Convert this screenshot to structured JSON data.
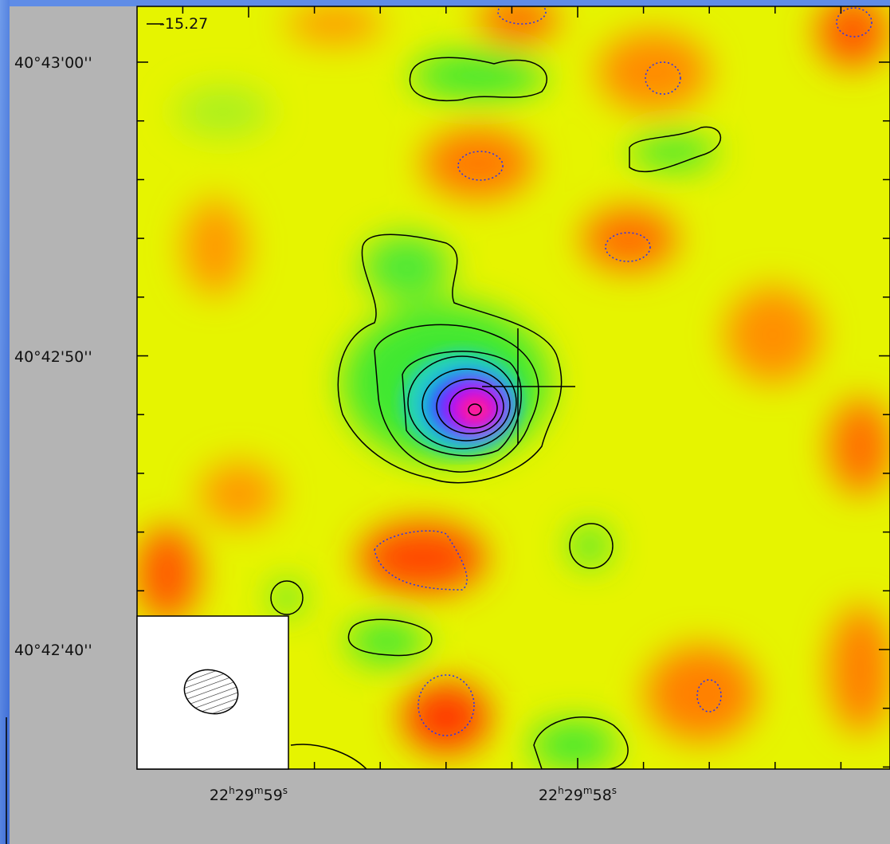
{
  "map": {
    "level_label": "-15.27",
    "dec_labels": [
      "40°43'00''",
      "40°42'50''",
      "40°42'40''"
    ],
    "ra_labels": [
      {
        "hours": "22",
        "h": "h",
        "minutes": "29",
        "m": "m",
        "seconds": "59",
        "s": "s"
      },
      {
        "hours": "22",
        "h": "h",
        "minutes": "29",
        "m": "m",
        "seconds": "58",
        "s": "s"
      }
    ]
  }
}
